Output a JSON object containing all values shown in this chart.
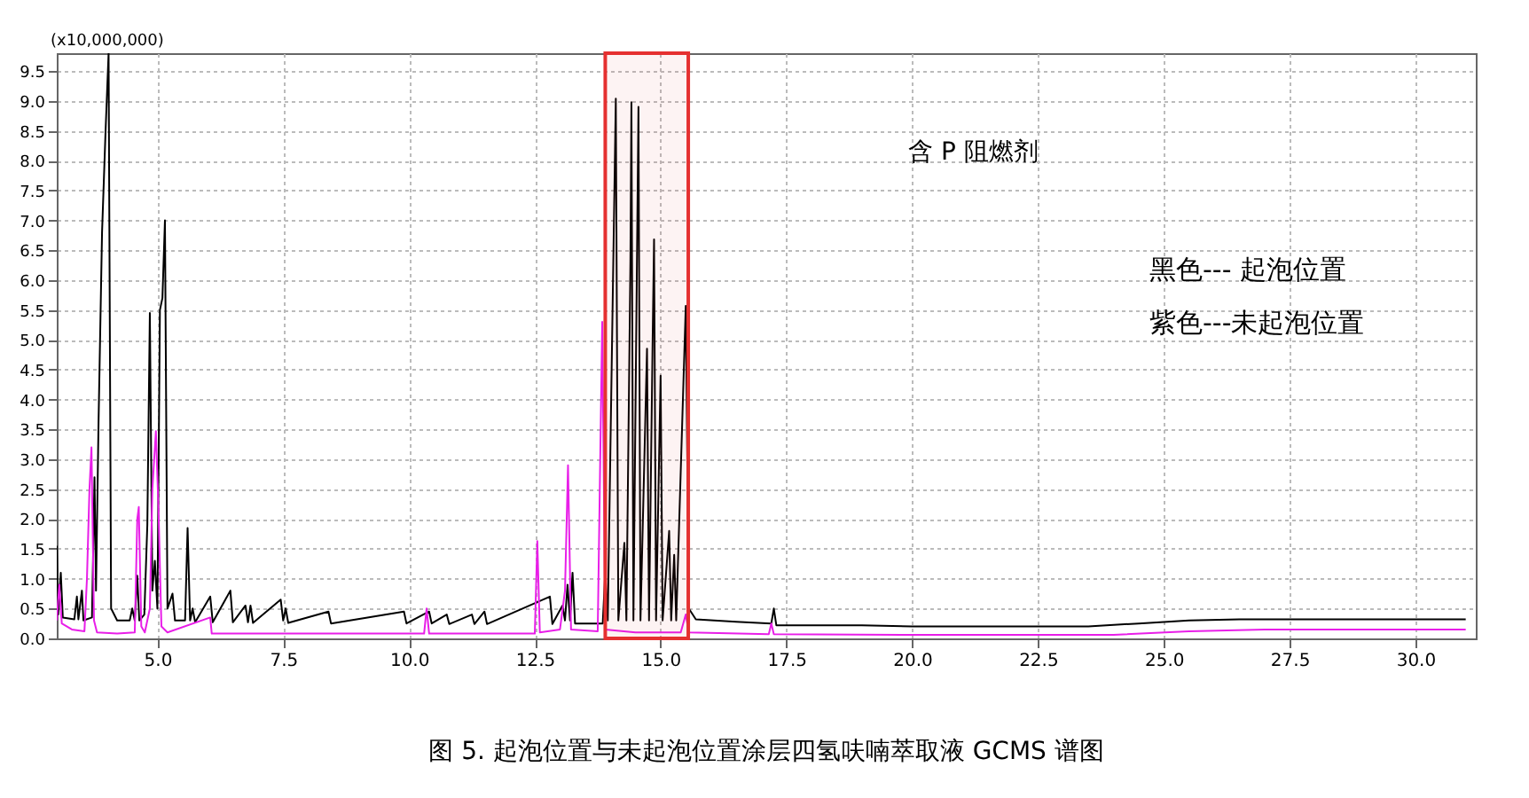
{
  "chart_data": {
    "type": "line",
    "title": "图 5. 起泡位置与未起泡位置涂层四氢呋喃萃取液 GCMS 谱图",
    "ylabel": "(x10,000,000)",
    "xlim": [
      3.0,
      31.2
    ],
    "ylim": [
      0,
      9.8
    ],
    "xticks": [
      {
        "value": 5,
        "label": "5.0"
      },
      {
        "value": 7.5,
        "label": "7.5"
      },
      {
        "value": 10,
        "label": "10.0"
      },
      {
        "value": 12.5,
        "label": "12.5"
      },
      {
        "value": 15,
        "label": "15.0"
      },
      {
        "value": 17.5,
        "label": "17.5"
      },
      {
        "value": 20,
        "label": "20.0"
      },
      {
        "value": 22.5,
        "label": "22.5"
      },
      {
        "value": 25,
        "label": "25.0"
      },
      {
        "value": 27.5,
        "label": "27.5"
      },
      {
        "value": 30,
        "label": "30.0"
      }
    ],
    "yticks": [
      {
        "value": 0,
        "label": "0.0"
      },
      {
        "value": 0.5,
        "label": "0.5"
      },
      {
        "value": 1,
        "label": "1.0"
      },
      {
        "value": 1.5,
        "label": "1.5"
      },
      {
        "value": 2,
        "label": "2.0"
      },
      {
        "value": 2.5,
        "label": "2.5"
      },
      {
        "value": 3,
        "label": "3.0"
      },
      {
        "value": 3.5,
        "label": "3.5"
      },
      {
        "value": 4,
        "label": "4.0"
      },
      {
        "value": 4.5,
        "label": "4.5"
      },
      {
        "value": 5,
        "label": "5.0"
      },
      {
        "value": 5.5,
        "label": "5.5"
      },
      {
        "value": 6,
        "label": "6.0"
      },
      {
        "value": 6.5,
        "label": "6.5"
      },
      {
        "value": 7,
        "label": "7.0"
      },
      {
        "value": 7.5,
        "label": "7.5"
      },
      {
        "value": 8,
        "label": "8.0"
      },
      {
        "value": 8.5,
        "label": "8.5"
      },
      {
        "value": 9,
        "label": "9.0"
      },
      {
        "value": 9.5,
        "label": "9.5"
      }
    ],
    "grid": true,
    "annotations": [
      "含 P 阻燃剂",
      "黑色--- 起泡位置",
      "紫色---未起泡位置"
    ],
    "bands": [
      {
        "axis": "x",
        "from": 13.9,
        "to": 15.55,
        "label": null,
        "color": "#e53030"
      }
    ],
    "series": [
      {
        "color": "#000000",
        "x": [
          3.0,
          3.03,
          3.08,
          3.12,
          3.35,
          3.4,
          3.43,
          3.5,
          3.53,
          3.7,
          3.75,
          3.78,
          3.83,
          3.9,
          3.97,
          4.03,
          4.08,
          4.2,
          4.45,
          4.5,
          4.55,
          4.6,
          4.64,
          4.74,
          4.8,
          4.85,
          4.9,
          4.95,
          5.0,
          5.05,
          5.1,
          5.15,
          5.2,
          5.3,
          5.35,
          5.55,
          5.6,
          5.65,
          5.7,
          5.75,
          6.05,
          6.1,
          6.45,
          6.5,
          6.75,
          6.8,
          6.85,
          6.9,
          7.45,
          7.5,
          7.55,
          7.6,
          8.4,
          8.45,
          9.9,
          9.95,
          10.4,
          10.45,
          10.75,
          10.8,
          11.25,
          11.3,
          11.5,
          11.55,
          12.8,
          12.85,
          13.05,
          13.1,
          13.15,
          13.2,
          13.25,
          13.3,
          13.85,
          13.9,
          13.95,
          14.11,
          14.16,
          14.28,
          14.32,
          14.4,
          14.42,
          14.46,
          14.56,
          14.6,
          14.73,
          14.77,
          14.84,
          14.87,
          14.91,
          15.0,
          15.04,
          15.17,
          15.21,
          15.27,
          15.31,
          15.5,
          15.56,
          15.7,
          16.5,
          17.2,
          17.25,
          17.3,
          19,
          20,
          22,
          23.5,
          24.5,
          25.5,
          26.5,
          31
        ],
        "values": [
          1.55,
          0.4,
          1.1,
          0.35,
          0.32,
          0.7,
          0.32,
          0.8,
          0.3,
          0.35,
          2.7,
          0.8,
          3.6,
          6.8,
          8.5,
          9.8,
          0.5,
          0.3,
          0.3,
          0.5,
          0.3,
          1.05,
          0.3,
          0.4,
          1.9,
          5.45,
          0.8,
          1.3,
          0.5,
          5.5,
          5.7,
          7.0,
          0.5,
          0.75,
          0.3,
          0.3,
          1.85,
          0.3,
          0.5,
          0.27,
          0.7,
          0.27,
          0.8,
          0.27,
          0.55,
          0.27,
          0.55,
          0.26,
          0.65,
          0.3,
          0.5,
          0.26,
          0.45,
          0.25,
          0.45,
          0.25,
          0.45,
          0.25,
          0.4,
          0.24,
          0.4,
          0.24,
          0.45,
          0.24,
          0.7,
          0.24,
          0.55,
          0.3,
          0.9,
          0.3,
          1.1,
          0.25,
          0.25,
          1.1,
          0.3,
          9.04,
          0.3,
          1.6,
          0.3,
          6.3,
          8.98,
          0.3,
          8.9,
          0.3,
          4.85,
          0.3,
          4.9,
          6.68,
          0.3,
          4.4,
          0.3,
          1.8,
          0.3,
          1.4,
          0.3,
          5.57,
          0.5,
          0.32,
          0.28,
          0.25,
          0.5,
          0.22,
          0.22,
          0.2,
          0.2,
          0.2,
          0.25,
          0.3,
          0.32,
          0.32
        ]
      },
      {
        "color": "#e81ee8",
        "x": [
          3.0,
          3.05,
          3.1,
          3.3,
          3.55,
          3.6,
          3.65,
          3.69,
          3.74,
          3.8,
          4.2,
          4.55,
          4.6,
          4.63,
          4.68,
          4.75,
          4.85,
          4.9,
          4.97,
          5.02,
          5.08,
          5.2,
          6.05,
          6.08,
          10.3,
          10.35,
          10.4,
          12.5,
          12.55,
          12.6,
          13.0,
          13.1,
          13.16,
          13.22,
          13.75,
          13.84,
          13.9,
          14.5,
          15.4,
          15.5,
          15.56,
          17.15,
          17.2,
          17.25,
          20,
          24,
          25.5,
          27,
          31
        ],
        "values": [
          0.3,
          0.9,
          0.25,
          0.15,
          0.12,
          1.0,
          2.5,
          3.2,
          0.3,
          0.1,
          0.08,
          0.1,
          2.0,
          2.2,
          0.2,
          0.1,
          0.5,
          2.5,
          3.47,
          2.2,
          0.2,
          0.1,
          0.35,
          0.08,
          0.08,
          0.5,
          0.08,
          0.08,
          1.63,
          0.1,
          0.15,
          0.8,
          2.9,
          0.15,
          0.12,
          5.3,
          0.15,
          0.1,
          0.1,
          0.4,
          0.1,
          0.07,
          0.25,
          0.07,
          0.06,
          0.06,
          0.12,
          0.15,
          0.15
        ]
      }
    ]
  }
}
